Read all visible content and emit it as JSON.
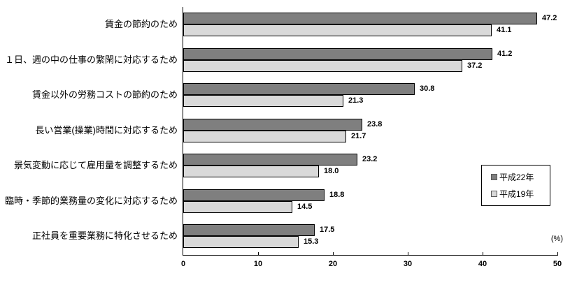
{
  "chart_data": {
    "type": "bar",
    "orientation": "horizontal",
    "title": "",
    "categories": [
      "賃金の節約のため",
      "１日、週の中の仕事の繁閑に対応するため",
      "賃金以外の労務コストの節約のため",
      "長い営業(操業)時間に対応するため",
      "景気変動に応じて雇用量を調整するため",
      "臨時・季節的業務量の変化に対応するため",
      "正社員を重要業務に特化させるため"
    ],
    "series": [
      {
        "name": "平成22年",
        "color": "#7f7f7f",
        "values": [
          47.2,
          41.2,
          30.8,
          23.8,
          23.2,
          18.8,
          17.5
        ]
      },
      {
        "name": "平成19年",
        "color": "#d9d9d9",
        "values": [
          41.1,
          37.2,
          21.3,
          21.7,
          18.0,
          14.5,
          15.3
        ]
      }
    ],
    "xlim": [
      0,
      50
    ],
    "x_ticks": [
      0,
      10,
      20,
      30,
      40,
      50
    ],
    "xlabel_unit": "(%)",
    "value_labels_shown": true,
    "value_label_decimals": 1,
    "grid": false,
    "legend_position": "right",
    "bar_border_color": "#000000",
    "background_color": "#ffffff"
  }
}
